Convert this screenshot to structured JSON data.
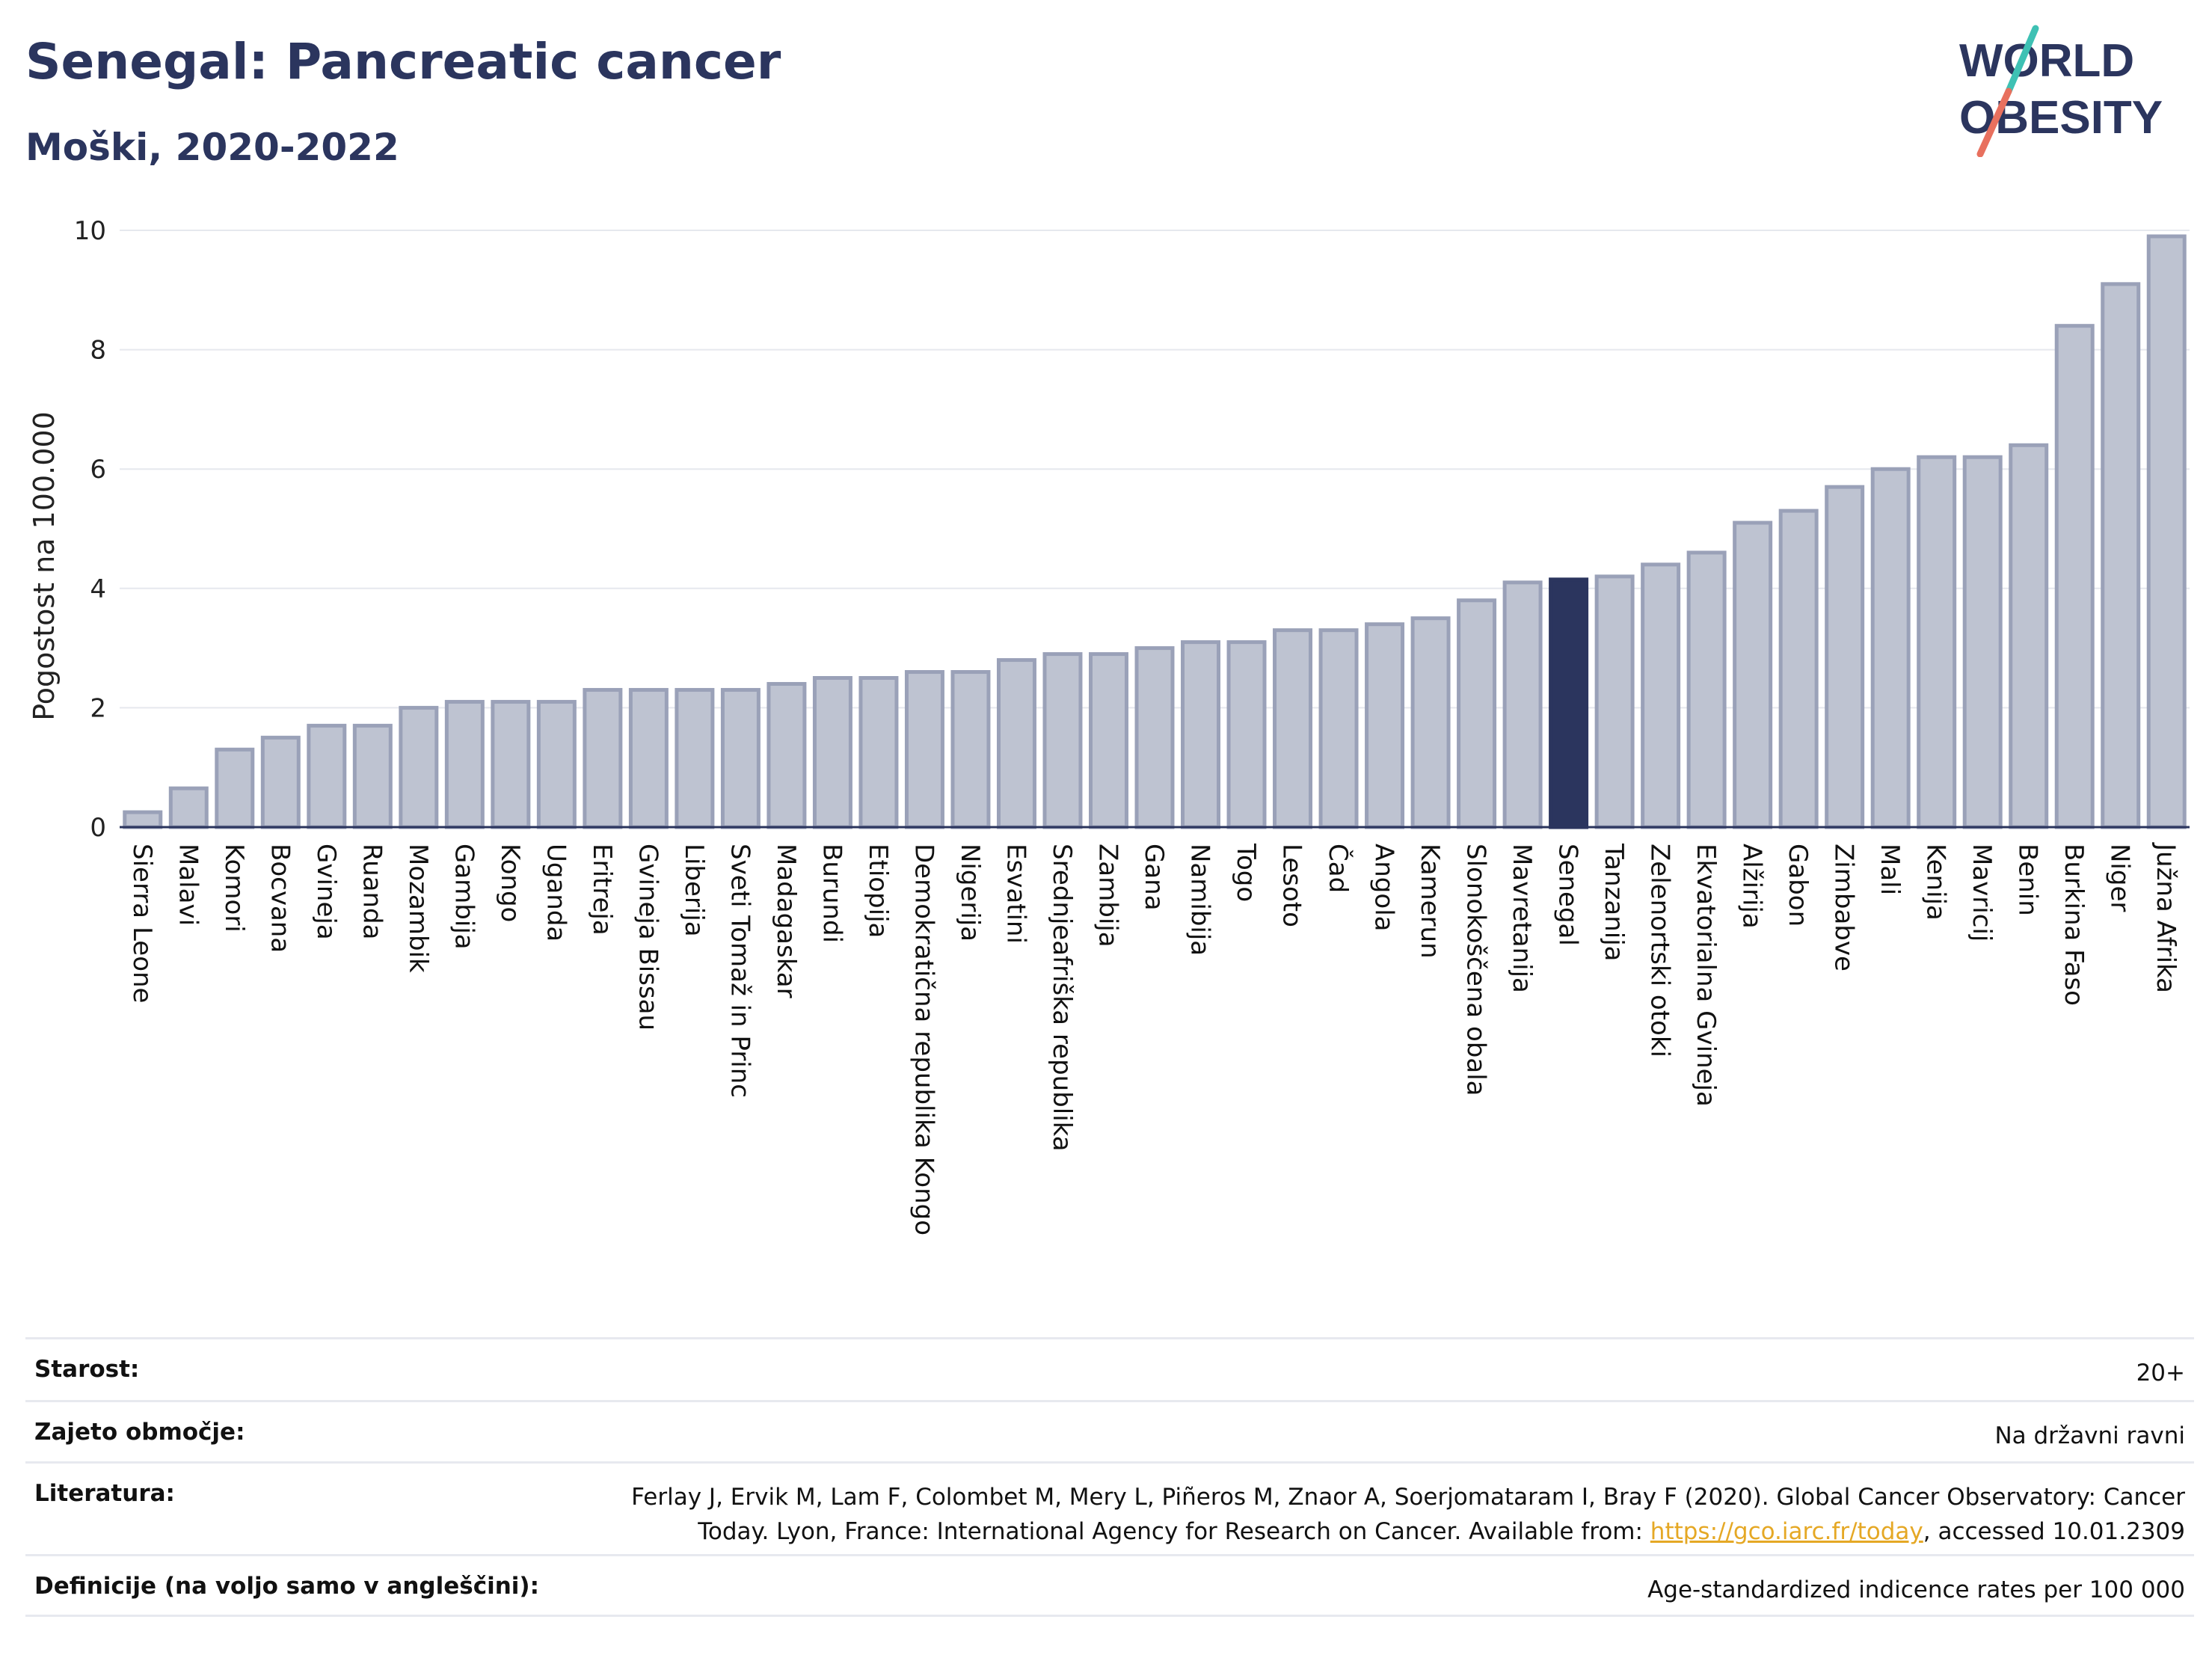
{
  "header": {
    "title": "Senegal: Pancreatic cancer",
    "subtitle": "Moški, 2020-2022"
  },
  "logo": {
    "line1": "WORLD",
    "line2": "OBESITY"
  },
  "colors": {
    "bar_fill": "#bec3d1",
    "bar_stroke": "#9aa1b8",
    "highlight": "#2b355e",
    "title": "#2b355e",
    "logo_teal": "#3ec1b4",
    "logo_coral": "#e8705e",
    "link": "#e5a825"
  },
  "chart_data": {
    "type": "bar",
    "ylabel": "Pogostost na 100.000",
    "ylim": [
      0,
      10
    ],
    "yticks": [
      0,
      2,
      4,
      6,
      8,
      10
    ],
    "grid": true,
    "highlight": "Senegal",
    "categories": [
      "Sierra Leone",
      "Malavi",
      "Komori",
      "Bocvana",
      "Gvineja",
      "Ruanda",
      "Mozambik",
      "Gambija",
      "Kongo",
      "Uganda",
      "Eritreja",
      "Gvineja Bissau",
      "Liberija",
      "Sveti Tomaž in Princ",
      "Madagaskar",
      "Burundi",
      "Etiopija",
      "Demokratična republika Kongo",
      "Nigerija",
      "Esvatini",
      "Srednjeafriška republika",
      "Zambija",
      "Gana",
      "Namibija",
      "Togo",
      "Lesoto",
      "Čad",
      "Angola",
      "Kamerun",
      "Slonokoščena obala",
      "Mavretanija",
      "Senegal",
      "Tanzanija",
      "Zelenortski otoki",
      "Ekvatorialna Gvineja",
      "Alžirija",
      "Gabon",
      "Zimbabve",
      "Mali",
      "Kenija",
      "Mavricij",
      "Benin",
      "Burkina Faso",
      "Niger",
      "Južna Afrika"
    ],
    "values": [
      0.25,
      0.65,
      1.3,
      1.5,
      1.7,
      1.7,
      2.0,
      2.1,
      2.1,
      2.1,
      2.3,
      2.3,
      2.3,
      2.3,
      2.4,
      2.5,
      2.5,
      2.6,
      2.6,
      2.8,
      2.9,
      2.9,
      3.0,
      3.1,
      3.1,
      3.3,
      3.3,
      3.4,
      3.5,
      3.8,
      4.1,
      4.15,
      4.2,
      4.4,
      4.6,
      5.1,
      5.3,
      5.7,
      6.0,
      6.2,
      6.2,
      6.4,
      8.4,
      9.1,
      9.9
    ]
  },
  "footer": {
    "rows": [
      {
        "label": "Starost:",
        "value": "20+"
      },
      {
        "label": "Zajeto območje:",
        "value": "Na državni ravni"
      },
      {
        "label": "Literatura:",
        "value_line1": "Ferlay J, Ervik M, Lam F, Colombet M, Mery L, Piñeros M, Znaor A, Soerjomataram I, Bray F (2020). Global Cancer Observatory: Cancer",
        "value_line2_pre": "Today. Lyon, France: International Agency for Research on Cancer. Available from: ",
        "link_text": "https://gco.iarc.fr/today",
        "value_line2_post": ", accessed 10.01.2309"
      },
      {
        "label": "Definicije (na voljo samo v angleščini):",
        "value": "Age-standardized indicence rates per 100 000"
      }
    ]
  }
}
